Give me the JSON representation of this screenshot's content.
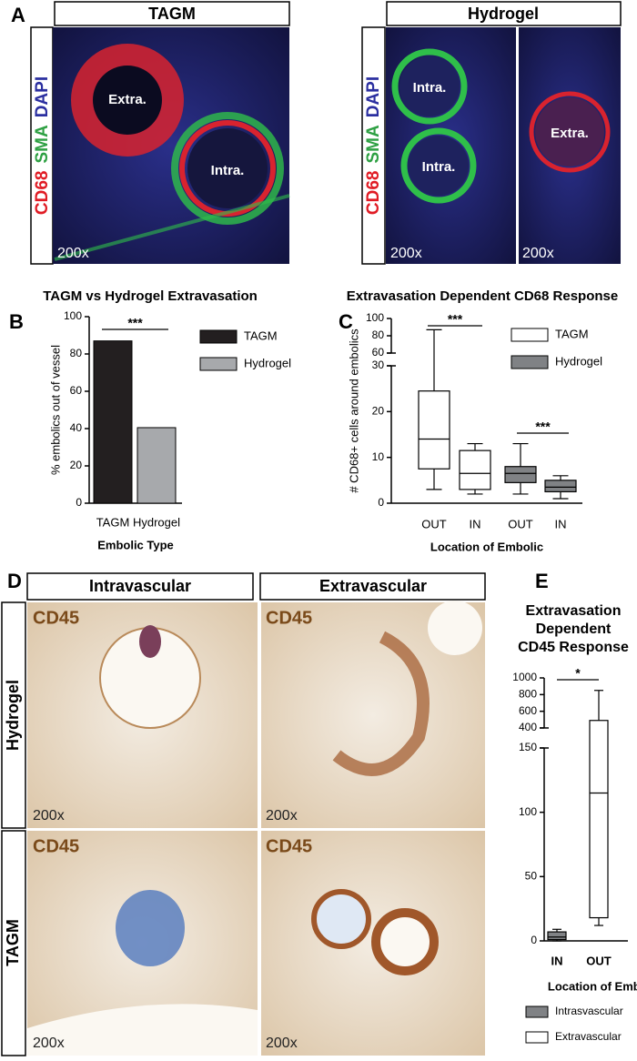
{
  "figure": {
    "panel_labels": [
      "A",
      "B",
      "C",
      "D",
      "E"
    ],
    "panel_a": {
      "headers": [
        "TAGM",
        "Hydrogel"
      ],
      "stains": [
        "CD68",
        "SMA",
        "DAPI"
      ],
      "image_labels": [
        "Extra.",
        "Intra.",
        "Intra.",
        "Intra.",
        "Extra."
      ],
      "magnification": "200x"
    },
    "panel_d": {
      "columns": [
        "Intravascular",
        "Extravascular"
      ],
      "rows": [
        "Hydrogel",
        "TAGM"
      ],
      "stain": "CD45",
      "magnification": "200x"
    }
  },
  "chart_data": [
    {
      "type": "bar",
      "title": "TAGM vs Hydrogel Extravasation",
      "y_label": "% embolics out of vessel",
      "x_label": "Embolic Type",
      "categories": [
        "TAGM",
        "Hydrogel"
      ],
      "series": [
        {
          "name": "TAGM",
          "color": "#231f20",
          "values": [
            87,
            null
          ]
        },
        {
          "name": "Hydrogel",
          "color": "#a7a9ac",
          "values": [
            null,
            40.5
          ]
        }
      ],
      "ylim": [
        0,
        100
      ],
      "yticks": [
        0,
        20,
        40,
        60,
        80,
        100
      ],
      "annotations": [
        "***"
      ]
    },
    {
      "type": "box",
      "title": "Extravasation Dependent CD68 Response",
      "y_label": "# CD68+ cells around embolics",
      "x_label": "Location of Embolic",
      "categories": [
        "OUT",
        "IN",
        "OUT",
        "IN"
      ],
      "series": [
        {
          "name": "TAGM",
          "color": "#ffffff",
          "min": [
            3,
            2,
            null,
            null
          ],
          "q1": [
            7.5,
            3,
            null,
            null
          ],
          "median": [
            14,
            6.5,
            null,
            null
          ],
          "q3": [
            24.5,
            11.5,
            null,
            null
          ],
          "max": [
            87,
            13,
            null,
            null
          ]
        },
        {
          "name": "Hydrogel",
          "color": "#808285",
          "min": [
            null,
            null,
            2,
            1
          ],
          "q1": [
            null,
            null,
            4.5,
            2.5
          ],
          "median": [
            null,
            null,
            6.5,
            3.5
          ],
          "q3": [
            null,
            null,
            8,
            5
          ],
          "max": [
            null,
            null,
            13,
            6
          ]
        }
      ],
      "ylim": [
        0,
        100
      ],
      "ybreak": [
        30,
        60
      ],
      "yticks": [
        0,
        10,
        20,
        30,
        60,
        80,
        100
      ],
      "annotations": [
        "***",
        "***"
      ]
    },
    {
      "type": "box",
      "title": [
        "Extravasation",
        "Dependent",
        "CD45 Response"
      ],
      "x_label": "Location of Embolic",
      "categories": [
        "IN",
        "OUT"
      ],
      "series": [
        {
          "name": "Intrasvascular",
          "color": "#808285",
          "min": [
            0,
            null
          ],
          "q1": [
            1,
            null
          ],
          "median": [
            3,
            null
          ],
          "q3": [
            7,
            null
          ],
          "max": [
            9,
            null
          ]
        },
        {
          "name": "Extravascular",
          "color": "#ffffff",
          "min": [
            null,
            12
          ],
          "q1": [
            null,
            18
          ],
          "median": [
            null,
            115
          ],
          "q3": [
            null,
            490
          ],
          "max": [
            null,
            850
          ]
        }
      ],
      "ylim": [
        0,
        1000
      ],
      "ybreak": [
        150,
        400
      ],
      "yticks": [
        0,
        50,
        100,
        150,
        400,
        600,
        800,
        1000
      ],
      "annotations": [
        "*"
      ]
    }
  ]
}
